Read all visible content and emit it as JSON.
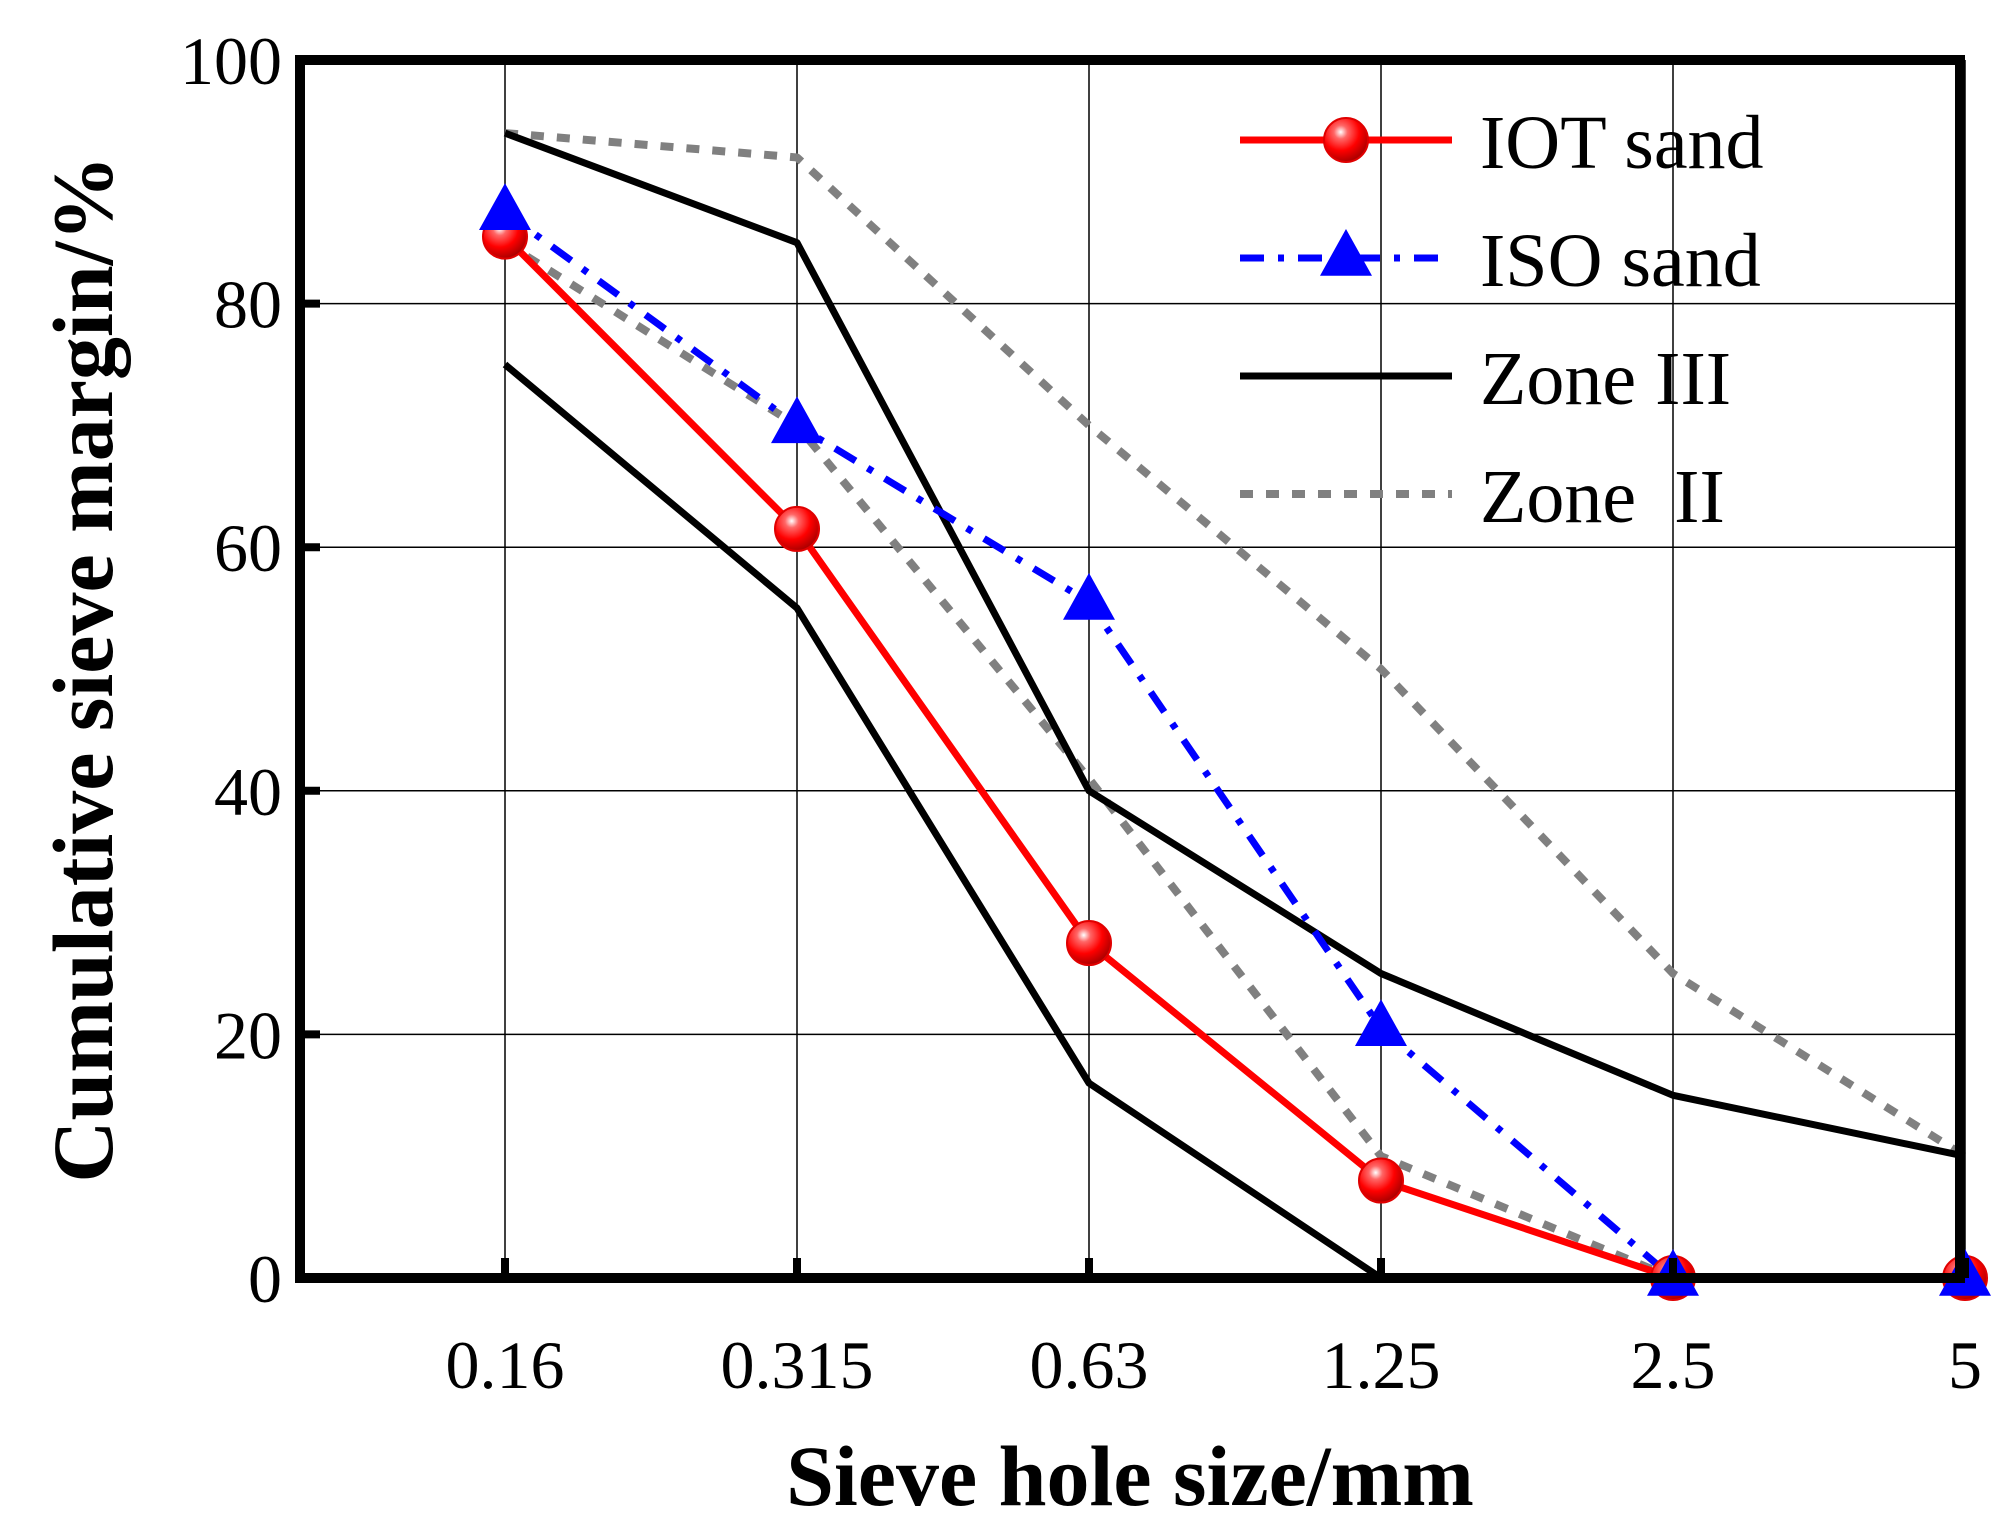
{
  "chart_data": {
    "type": "line",
    "title": "",
    "xlabel": "Sieve hole size/mm",
    "ylabel": "Cumulative sieve margin/%",
    "categories": [
      "0.16",
      "0.315",
      "0.63",
      "1.25",
      "2.5",
      "5"
    ],
    "ylim": [
      0,
      100
    ],
    "yticks": [
      "0",
      "20",
      "40",
      "60",
      "80",
      "100"
    ],
    "grid": true,
    "legend_position": "top-right",
    "series": [
      {
        "name": "IOT sand",
        "color": "#ff0000",
        "style": "solid",
        "marker": "circle",
        "values": [
          85.5,
          61.5,
          27.5,
          8,
          0,
          0
        ]
      },
      {
        "name": "ISO sand",
        "color": "#0000ff",
        "style": "dashdot",
        "marker": "triangle",
        "values": [
          87.5,
          70,
          55.5,
          20.5,
          0,
          0
        ]
      },
      {
        "name": "Zone III",
        "color": "#000000",
        "style": "solid",
        "marker": "none",
        "values": [
          94,
          85,
          40,
          25,
          15,
          10
        ],
        "lower_values": [
          75,
          55,
          16,
          0,
          null,
          null
        ]
      },
      {
        "name": "Zone  II",
        "color": "#808080",
        "style": "dotted",
        "marker": "none",
        "values": [
          94,
          92,
          70,
          50,
          25,
          10
        ],
        "lower_values": [
          85,
          70,
          41,
          10,
          0,
          0
        ]
      }
    ]
  }
}
